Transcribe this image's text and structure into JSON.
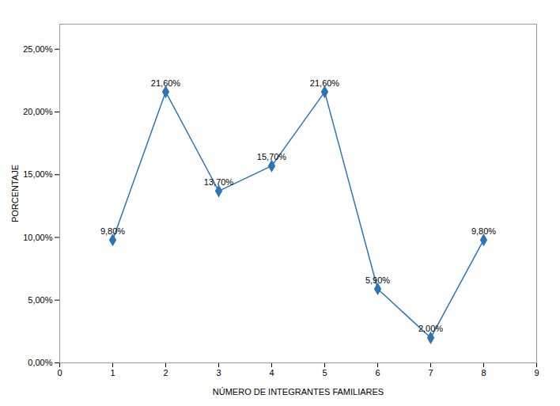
{
  "chart_data": {
    "type": "line",
    "x": [
      1,
      2,
      3,
      4,
      5,
      6,
      7,
      8
    ],
    "values": [
      9.8,
      21.6,
      13.7,
      15.7,
      21.6,
      5.9,
      2.0,
      9.8
    ],
    "value_labels": [
      "9,80%",
      "21,60%",
      "13,70%",
      "15,70%",
      "21,60%",
      "5,90%",
      "2,00%",
      "9,80%"
    ],
    "data_labels": true,
    "color": "#2E74B5",
    "marker": "diamond",
    "xlabel": "NÚMERO DE INTEGRANTES FAMILIARES",
    "ylabel": "PORCENTAJE",
    "xlim": [
      0,
      9
    ],
    "ylim": [
      0,
      27
    ],
    "xticks": [
      0,
      1,
      2,
      3,
      4,
      5,
      6,
      7,
      8,
      9
    ],
    "yticks": [
      {
        "value": 0,
        "label": "0,00%"
      },
      {
        "value": 5,
        "label": "5,00%"
      },
      {
        "value": 10,
        "label": "10,00%"
      },
      {
        "value": 15,
        "label": "15,00%"
      },
      {
        "value": 20,
        "label": "20,00%"
      },
      {
        "value": 25,
        "label": "25,00%"
      }
    ],
    "grid": false
  }
}
